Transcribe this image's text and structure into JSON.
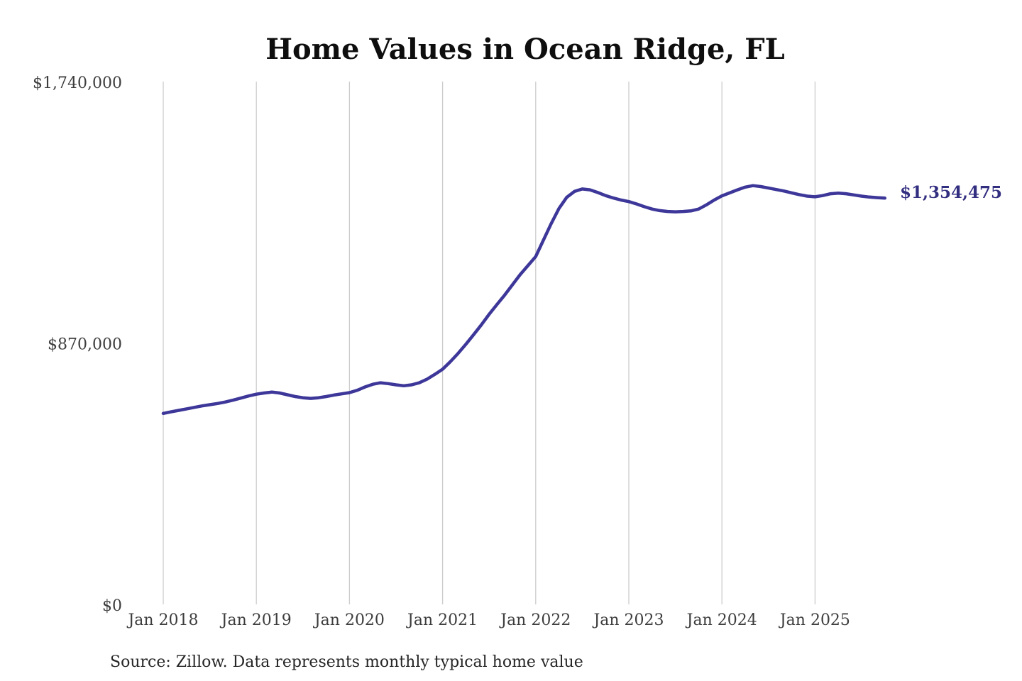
{
  "title": "Home Values in Ocean Ridge, FL",
  "source_note": "Source: Zillow. Data represents monthly typical home value",
  "annotation": {
    "label": "$1,354,475",
    "color": "#322e80"
  },
  "chart_data": {
    "type": "line",
    "title": "Home Values in Ocean Ridge, FL",
    "xlabel": "",
    "ylabel": "",
    "ylim": [
      0,
      1740000
    ],
    "grid": "vertical-only",
    "grid_color": "#cccccc",
    "line_color": "#3d3799",
    "legend": "none",
    "frequency": "monthly",
    "x_tick_labels": [
      "Jan 2018",
      "Jan 2019",
      "Jan 2020",
      "Jan 2021",
      "Jan 2022",
      "Jan 2023",
      "Jan 2024",
      "Jan 2025"
    ],
    "y_ticks": [
      {
        "value": 0,
        "label": "$0"
      },
      {
        "value": 870000,
        "label": "$870,000"
      },
      {
        "value": 1740000,
        "label": "$1,740,000"
      }
    ],
    "months": [
      "2018-01",
      "2018-02",
      "2018-03",
      "2018-04",
      "2018-05",
      "2018-06",
      "2018-07",
      "2018-08",
      "2018-09",
      "2018-10",
      "2018-11",
      "2018-12",
      "2019-01",
      "2019-02",
      "2019-03",
      "2019-04",
      "2019-05",
      "2019-06",
      "2019-07",
      "2019-08",
      "2019-09",
      "2019-10",
      "2019-11",
      "2019-12",
      "2020-01",
      "2020-02",
      "2020-03",
      "2020-04",
      "2020-05",
      "2020-06",
      "2020-07",
      "2020-08",
      "2020-09",
      "2020-10",
      "2020-11",
      "2020-12",
      "2021-01",
      "2021-02",
      "2021-03",
      "2021-04",
      "2021-05",
      "2021-06",
      "2021-07",
      "2021-08",
      "2021-09",
      "2021-10",
      "2021-11",
      "2021-12",
      "2022-01",
      "2022-02",
      "2022-03",
      "2022-04",
      "2022-05",
      "2022-06",
      "2022-07",
      "2022-08",
      "2022-09",
      "2022-10",
      "2022-11",
      "2022-12",
      "2023-01",
      "2023-02",
      "2023-03",
      "2023-04",
      "2023-05",
      "2023-06",
      "2023-07",
      "2023-08",
      "2023-09",
      "2023-10",
      "2023-11",
      "2023-12",
      "2024-01",
      "2024-02",
      "2024-03",
      "2024-04",
      "2024-05",
      "2024-06",
      "2024-07",
      "2024-08",
      "2024-09",
      "2024-10",
      "2024-11",
      "2024-12",
      "2025-01",
      "2025-02",
      "2025-03",
      "2025-04",
      "2025-05",
      "2025-06",
      "2025-07",
      "2025-08",
      "2025-09",
      "2025-10"
    ],
    "values": [
      638000,
      643000,
      648000,
      653000,
      658000,
      663000,
      667000,
      671000,
      676000,
      682000,
      689000,
      696000,
      702000,
      706000,
      709000,
      706000,
      700000,
      694000,
      690000,
      688000,
      690000,
      694000,
      699000,
      703000,
      707000,
      715000,
      726000,
      735000,
      740000,
      737000,
      733000,
      730000,
      733000,
      740000,
      752000,
      768000,
      785000,
      810000,
      838000,
      868000,
      900000,
      933000,
      968000,
      1000000,
      1032000,
      1066000,
      1100000,
      1130000,
      1160000,
      1215000,
      1270000,
      1320000,
      1357000,
      1377000,
      1385000,
      1382000,
      1373000,
      1363000,
      1355000,
      1348000,
      1343000,
      1335000,
      1326000,
      1318000,
      1313000,
      1310000,
      1309000,
      1310000,
      1312000,
      1318000,
      1332000,
      1348000,
      1362000,
      1372000,
      1382000,
      1391000,
      1396000,
      1393000,
      1388000,
      1383000,
      1378000,
      1372000,
      1366000,
      1361000,
      1359000,
      1363000,
      1369000,
      1371000,
      1369000,
      1365000,
      1361000,
      1358000,
      1356000,
      1354475
    ],
    "last_point_label": "$1,354,475"
  }
}
